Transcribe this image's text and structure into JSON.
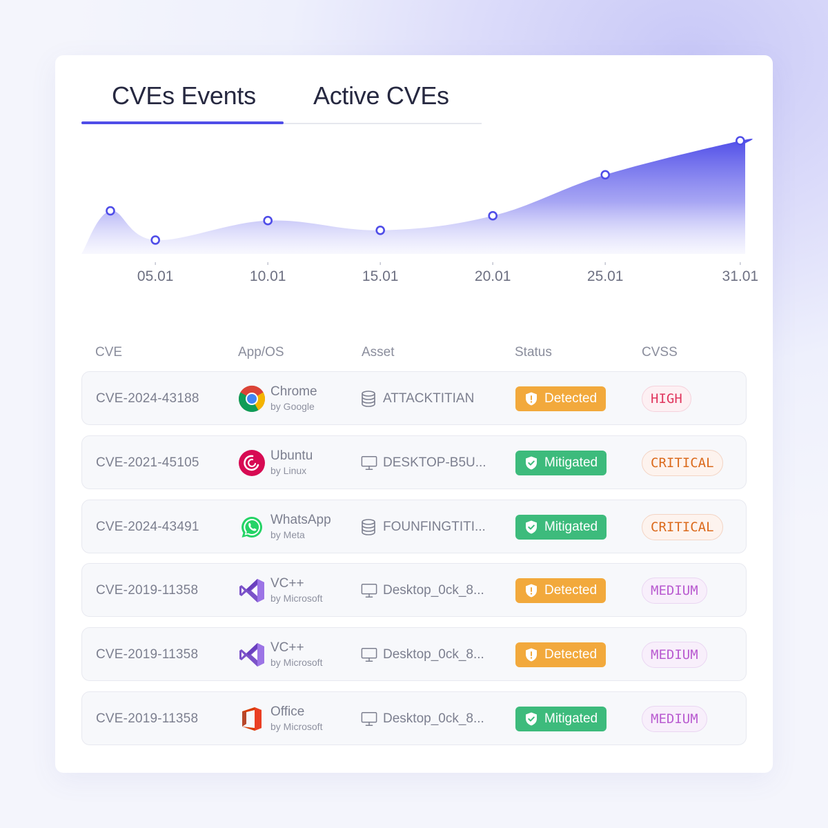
{
  "tabs": [
    {
      "label": "CVEs Events",
      "active": true
    },
    {
      "label": "Active CVEs",
      "active": false
    }
  ],
  "chart_data": {
    "type": "area",
    "x_ticks": [
      "05.01",
      "10.01",
      "15.01",
      "20.01",
      "25.01",
      "31.01"
    ],
    "points": [
      {
        "x": "03.01",
        "y": 62
      },
      {
        "x": "05.01",
        "y": 20
      },
      {
        "x": "10.01",
        "y": 48
      },
      {
        "x": "15.01",
        "y": 34
      },
      {
        "x": "20.01",
        "y": 55
      },
      {
        "x": "25.01",
        "y": 114
      },
      {
        "x": "31.01",
        "y": 163
      }
    ],
    "color": "#4f4de8",
    "grid": false
  },
  "table": {
    "columns": [
      "CVE",
      "App/OS",
      "Asset",
      "Status",
      "CVSS"
    ],
    "rows": [
      {
        "cve": "CVE-2024-43188",
        "app": "Chrome",
        "by": "by Google",
        "app_icon": "chrome-icon",
        "asset": "ATTACKTITIAN",
        "asset_icon": "database-icon",
        "status": "Detected",
        "cvss": "HIGH"
      },
      {
        "cve": "CVE-2021-45105",
        "app": "Ubuntu",
        "by": "by Linux",
        "app_icon": "debian-icon",
        "asset": "DESKTOP-B5U...",
        "asset_icon": "monitor-icon",
        "status": "Mitigated",
        "cvss": "CRITICAL"
      },
      {
        "cve": "CVE-2024-43491",
        "app": "WhatsApp",
        "by": "by Meta",
        "app_icon": "whatsapp-icon",
        "asset": "FOUNFINGTITI...",
        "asset_icon": "database-icon",
        "status": "Mitigated",
        "cvss": "CRITICAL"
      },
      {
        "cve": "CVE-2019-11358",
        "app": "VC++",
        "by": "by Microsoft",
        "app_icon": "visual-studio-icon",
        "asset": "Desktop_0ck_8...",
        "asset_icon": "monitor-icon",
        "status": "Detected",
        "cvss": "MEDIUM"
      },
      {
        "cve": "CVE-2019-11358",
        "app": "VC++",
        "by": "by Microsoft",
        "app_icon": "visual-studio-icon",
        "asset": "Desktop_0ck_8...",
        "asset_icon": "monitor-icon",
        "status": "Detected",
        "cvss": "MEDIUM"
      },
      {
        "cve": "CVE-2019-11358",
        "app": "Office",
        "by": "by Microsoft",
        "app_icon": "office-icon",
        "asset": "Desktop_0ck_8...",
        "asset_icon": "monitor-icon",
        "status": "Mitigated",
        "cvss": "MEDIUM"
      }
    ]
  },
  "colors": {
    "accent": "#4f4de8",
    "detected": "#f2a93c",
    "mitigated": "#3dbb7c",
    "high": "#e0365e",
    "critical": "#db6a1c",
    "medium": "#b95bd0"
  }
}
